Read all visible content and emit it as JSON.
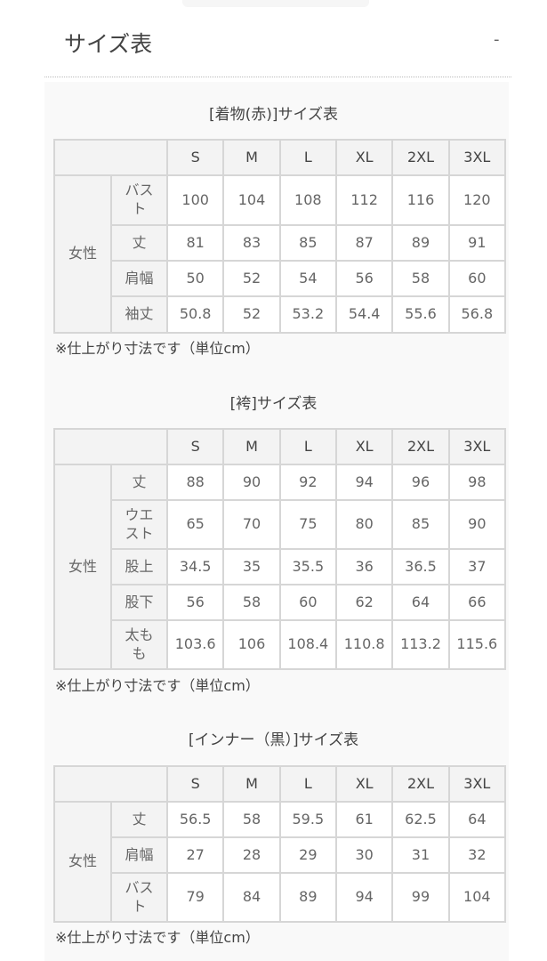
{
  "header": {
    "title": "サイズ表",
    "toggle": "-"
  },
  "sizes": [
    "S",
    "M",
    "L",
    "XL",
    "2XL",
    "3XL"
  ],
  "tables": [
    {
      "title": "[着物(赤)]サイズ表",
      "group": "女性",
      "rows": [
        {
          "label": "バスト",
          "values": [
            "100",
            "104",
            "108",
            "112",
            "116",
            "120"
          ]
        },
        {
          "label": "丈",
          "values": [
            "81",
            "83",
            "85",
            "87",
            "89",
            "91"
          ]
        },
        {
          "label": "肩幅",
          "values": [
            "50",
            "52",
            "54",
            "56",
            "58",
            "60"
          ]
        },
        {
          "label": "袖丈",
          "values": [
            "50.8",
            "52",
            "53.2",
            "54.4",
            "55.6",
            "56.8"
          ]
        }
      ],
      "note": "※仕上がり寸法です（単位cm）"
    },
    {
      "title": "[袴]サイズ表",
      "group": "女性",
      "rows": [
        {
          "label": "丈",
          "values": [
            "88",
            "90",
            "92",
            "94",
            "96",
            "98"
          ]
        },
        {
          "label": "ウエスト",
          "values": [
            "65",
            "70",
            "75",
            "80",
            "85",
            "90"
          ]
        },
        {
          "label": "股上",
          "values": [
            "34.5",
            "35",
            "35.5",
            "36",
            "36.5",
            "37"
          ]
        },
        {
          "label": "股下",
          "values": [
            "56",
            "58",
            "60",
            "62",
            "64",
            "66"
          ]
        },
        {
          "label": "太もも",
          "values": [
            "103.6",
            "106",
            "108.4",
            "110.8",
            "113.2",
            "115.6"
          ]
        }
      ],
      "note": "※仕上がり寸法です（単位cm）"
    },
    {
      "title": "[インナー（黒）]サイズ表",
      "group": "女性",
      "rows": [
        {
          "label": "丈",
          "values": [
            "56.5",
            "58",
            "59.5",
            "61",
            "62.5",
            "64"
          ]
        },
        {
          "label": "肩幅",
          "values": [
            "27",
            "28",
            "29",
            "30",
            "31",
            "32"
          ]
        },
        {
          "label": "バスト",
          "values": [
            "79",
            "84",
            "89",
            "94",
            "99",
            "104"
          ]
        }
      ],
      "note": "※仕上がり寸法です（単位cm）"
    }
  ]
}
